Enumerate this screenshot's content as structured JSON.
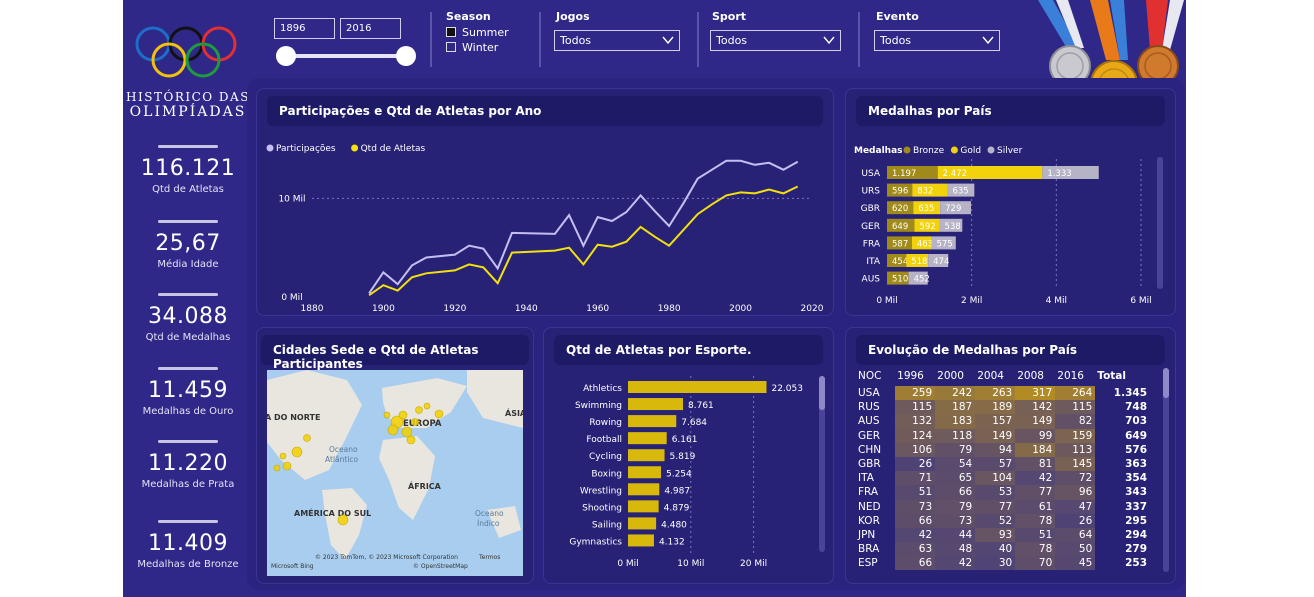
{
  "sidebar": {
    "title_line1": "HISTÓRICO DAS",
    "title_line2": "OLIMPÍADAS",
    "kpis": [
      {
        "value": "116.121",
        "label": "Qtd de Atletas"
      },
      {
        "value": "25,67",
        "label": "Média Idade"
      },
      {
        "value": "34.088",
        "label": "Qtd de Medalhas"
      },
      {
        "value": "11.459",
        "label": "Medalhas de Ouro"
      },
      {
        "value": "11.220",
        "label": "Medalhas de Prata"
      },
      {
        "value": "11.409",
        "label": "Medalhas de Bronze"
      }
    ]
  },
  "filters": {
    "year_start": "1896",
    "year_end": "2016",
    "season_title": "Season",
    "season_options": [
      "Summer",
      "Winter"
    ],
    "season_selected": "Summer",
    "jogos_title": "Jogos",
    "jogos_value": "Todos",
    "sport_title": "Sport",
    "sport_value": "Todos",
    "evento_title": "Evento",
    "evento_value": "Todos"
  },
  "panels": {
    "line_title": "Participações e Qtd de Atletas por Ano",
    "medals_title": "Medalhas por País",
    "map_title": "Cidades Sede e Qtd de Atletas Participantes",
    "sport_title": "Qtd de Atletas por Esporte.",
    "evolution_title": "Evolução de Medalhas por País"
  },
  "colors": {
    "background": "#2f2888",
    "participacoes": "#c4bff0",
    "atletas": "#f2e10a",
    "bronze": "#a08a1a",
    "gold": "#f2d20a",
    "silver": "#b7b3c6",
    "sport_bar": "#d8b80a"
  },
  "map": {
    "labels": [
      "A DO NORTE",
      "EUROPA",
      "ÁSIA",
      "Oceano Atlântico",
      "ÁFRICA",
      "AMÉRICA DO SUL",
      "Oceano Índico"
    ],
    "attribution": "© 2023 TomTom, © 2023 Microsoft Corporation",
    "terms": "Termos",
    "osm": "© OpenStreetMap",
    "bing": "Microsoft Bing"
  },
  "chart_data": [
    {
      "type": "line",
      "title": "Participações e Qtd de Atletas por Ano",
      "x": [
        1896,
        1900,
        1904,
        1908,
        1912,
        1920,
        1924,
        1928,
        1932,
        1936,
        1948,
        1952,
        1956,
        1960,
        1964,
        1968,
        1972,
        1976,
        1980,
        1984,
        1988,
        1992,
        1996,
        2000,
        2004,
        2008,
        2012,
        2016
      ],
      "series": [
        {
          "name": "Participações",
          "values": [
            380,
            2500,
            1300,
            3200,
            4000,
            4300,
            5200,
            4900,
            2900,
            6500,
            6400,
            8300,
            5200,
            8100,
            7700,
            8600,
            10300,
            8700,
            7200,
            9500,
            12000,
            12900,
            13800,
            13800,
            13400,
            13600,
            12900,
            13700
          ]
        },
        {
          "name": "Qtd de Atletas",
          "values": [
            180,
            1200,
            650,
            2000,
            2400,
            2700,
            3300,
            3000,
            1400,
            4500,
            4700,
            5000,
            3300,
            5300,
            5100,
            5600,
            7100,
            6100,
            5200,
            6800,
            8400,
            9400,
            10300,
            10600,
            10500,
            10900,
            10500,
            11200
          ]
        }
      ],
      "legend": [
        "Participações",
        "Qtd de Atletas"
      ],
      "xticks": [
        "1880",
        "1900",
        "1920",
        "1940",
        "1960",
        "1980",
        "2000",
        "2020"
      ],
      "yticks": [
        "0 Mil",
        "10 Mil"
      ],
      "xlim": [
        1880,
        2020
      ],
      "ylim": [
        0,
        15000
      ],
      "legend_position": "top-left"
    },
    {
      "type": "bar",
      "title": "Medalhas por País",
      "orientation": "horizontal-stacked",
      "legend_title": "Medalhas",
      "legend": [
        "Bronze",
        "Gold",
        "Silver"
      ],
      "categories": [
        "USA",
        "URS",
        "GBR",
        "GER",
        "FRA",
        "ITA",
        "AUS"
      ],
      "series": [
        {
          "name": "Bronze",
          "values": [
            1197,
            596,
            620,
            649,
            587,
            454,
            510
          ]
        },
        {
          "name": "Gold",
          "values": [
            2472,
            832,
            635,
            592,
            463,
            518,
            0
          ]
        },
        {
          "name": "Silver",
          "values": [
            1333,
            635,
            729,
            538,
            575,
            474,
            452
          ]
        }
      ],
      "labels": [
        [
          "1.197",
          "2.472",
          "1.333"
        ],
        [
          "596",
          "832",
          "635"
        ],
        [
          "620",
          "635",
          "729"
        ],
        [
          "649",
          "592",
          "538"
        ],
        [
          "587",
          "463",
          "575"
        ],
        [
          "454",
          "518",
          "474"
        ],
        [
          "510",
          "",
          "452"
        ]
      ],
      "xticks": [
        "0 Mil",
        "2 Mil",
        "4 Mil",
        "6 Mil"
      ],
      "xlim": [
        0,
        6000
      ],
      "legend_position": "top-left"
    },
    {
      "type": "bar",
      "title": "Qtd de Atletas por Esporte.",
      "orientation": "horizontal",
      "categories": [
        "Athletics",
        "Swimming",
        "Rowing",
        "Football",
        "Cycling",
        "Boxing",
        "Wrestling",
        "Shooting",
        "Sailing",
        "Gymnastics"
      ],
      "values": [
        22053,
        8761,
        7684,
        6161,
        5819,
        5254,
        4987,
        4879,
        4480,
        4132
      ],
      "labels": [
        "22.053",
        "8.761",
        "7.684",
        "6.161",
        "5.819",
        "5.254",
        "4.987",
        "4.879",
        "4.480",
        "4.132"
      ],
      "xticks": [
        "0 Mil",
        "10 Mil",
        "20 Mil"
      ],
      "xlim": [
        0,
        25000
      ]
    },
    {
      "type": "table",
      "title": "Evolução de Medalhas por País",
      "columns": [
        "NOC",
        "1996",
        "2000",
        "2004",
        "2008",
        "2016",
        "Total"
      ],
      "rows": [
        [
          "USA",
          "259",
          "242",
          "263",
          "317",
          "264",
          "1.345"
        ],
        [
          "RUS",
          "115",
          "187",
          "189",
          "142",
          "115",
          "748"
        ],
        [
          "AUS",
          "132",
          "183",
          "157",
          "149",
          "82",
          "703"
        ],
        [
          "GER",
          "124",
          "118",
          "149",
          "99",
          "159",
          "649"
        ],
        [
          "CHN",
          "106",
          "79",
          "94",
          "184",
          "113",
          "576"
        ],
        [
          "GBR",
          "26",
          "54",
          "57",
          "81",
          "145",
          "363"
        ],
        [
          "ITA",
          "71",
          "65",
          "104",
          "42",
          "72",
          "354"
        ],
        [
          "FRA",
          "51",
          "66",
          "53",
          "77",
          "96",
          "343"
        ],
        [
          "NED",
          "73",
          "79",
          "77",
          "61",
          "47",
          "337"
        ],
        [
          "KOR",
          "66",
          "73",
          "52",
          "78",
          "26",
          "295"
        ],
        [
          "JPN",
          "42",
          "44",
          "93",
          "51",
          "64",
          "294"
        ],
        [
          "BRA",
          "63",
          "48",
          "40",
          "78",
          "50",
          "279"
        ],
        [
          "ESP",
          "66",
          "42",
          "30",
          "70",
          "45",
          "253"
        ]
      ]
    }
  ]
}
